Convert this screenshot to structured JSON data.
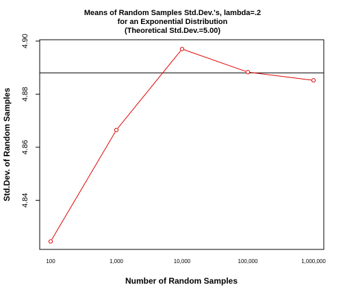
{
  "chart_data": {
    "type": "line",
    "title": [
      "Means of Random Samples Std.Dev.'s, lambda=.2",
      "for an Exponential Distribution",
      "(Theoretical Std.Dev.=5.00)"
    ],
    "xlabel": "Number of Random Samples",
    "ylabel": "Std.Dev. of Random Samples",
    "x_categories": [
      "100",
      "1,000",
      "10,000",
      "100,000",
      "1,000,000"
    ],
    "y_ticks": [
      4.84,
      4.86,
      4.88,
      4.9
    ],
    "y_tick_labels": [
      "4.84",
      "4.86",
      "4.88",
      "4.90"
    ],
    "ylim": [
      4.8215,
      4.9005
    ],
    "series": [
      {
        "values": [
          4.8245,
          4.8665,
          4.897,
          4.8883,
          4.8852
        ],
        "color": "#e00000",
        "marker": "open-circle"
      }
    ],
    "reference_line": {
      "y": 4.888,
      "color": "#000000"
    },
    "grid": false
  }
}
